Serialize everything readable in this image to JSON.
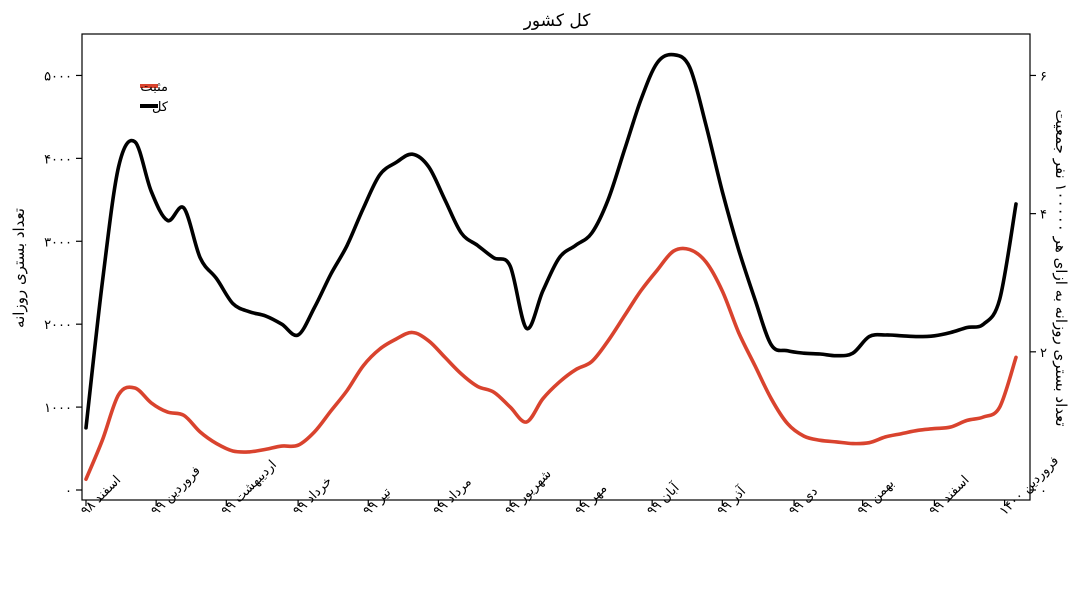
{
  "chart_data": {
    "type": "line",
    "title": "کل کشور",
    "ylabel": "تعداد بستری روزانه",
    "ylabel_right": "تعداد بستری روزانه به ازای هر ۱۰۰۰۰۰ نفر جمعیت",
    "ylim": [
      0,
      5500
    ],
    "y_right_lim": [
      0,
      6.6
    ],
    "yticks": [
      0,
      1000,
      2000,
      3000,
      4000,
      5000
    ],
    "yticklabels": [
      "۰",
      "۱۰۰۰",
      "۲۰۰۰",
      "۳۰۰۰",
      "۴۰۰۰",
      "۵۰۰۰"
    ],
    "y_right_ticks": [
      0,
      2,
      4,
      6
    ],
    "y_right_ticklabels": [
      "۰",
      "۲",
      "۴",
      "۶"
    ],
    "x_unit": "week index from start",
    "xlim": [
      0,
      57
    ],
    "x_ticks": [
      0,
      4.3,
      8.6,
      13,
      17.3,
      21.6,
      26,
      30.3,
      34.7,
      39,
      43.4,
      47.6,
      52,
      56.3
    ],
    "x_ticklabels": [
      "اسفند ۹۸",
      "فروردین ۹۹",
      "اردیبهشت ۹۹",
      "خرداد ۹۹",
      "تیر ۹۹",
      "مرداد ۹۹",
      "شهریور ۹۹",
      "مهر ۹۹",
      "آبان ۹۹",
      "آذر ۹۹",
      "دی ۹۹",
      "بهمن ۹۹",
      "اسفند ۹۹",
      "فروردین ۱۴۰۰"
    ],
    "legend_position": "top-left",
    "grid": false,
    "series": [
      {
        "name": "مثبت",
        "color": "#d9432e",
        "x": [
          0,
          1,
          2,
          3,
          4,
          5,
          6,
          7,
          8,
          9,
          10,
          11,
          12,
          13,
          14,
          15,
          16,
          17,
          18,
          19,
          20,
          21,
          22,
          23,
          24,
          25,
          26,
          27,
          28,
          29,
          30,
          31,
          32,
          33,
          34,
          35,
          36,
          37,
          38,
          39,
          40,
          41,
          42,
          43,
          44,
          45,
          46,
          47,
          48,
          49,
          50,
          51,
          52,
          53,
          54,
          55,
          56,
          57
        ],
        "values": [
          130,
          600,
          1150,
          1230,
          1050,
          940,
          900,
          700,
          560,
          470,
          460,
          490,
          530,
          540,
          700,
          950,
          1200,
          1500,
          1700,
          1820,
          1900,
          1800,
          1600,
          1400,
          1250,
          1180,
          1000,
          820,
          1100,
          1300,
          1450,
          1550,
          1800,
          2100,
          2400,
          2650,
          2880,
          2900,
          2750,
          2400,
          1900,
          1500,
          1100,
          800,
          650,
          600,
          580,
          560,
          570,
          640,
          680,
          720,
          740,
          760,
          840,
          880,
          1000,
          1600
        ]
      },
      {
        "name": "کل",
        "color": "#000000",
        "x": [
          0,
          1,
          2,
          3,
          4,
          5,
          6,
          7,
          8,
          9,
          10,
          11,
          12,
          13,
          14,
          15,
          16,
          17,
          18,
          19,
          20,
          21,
          22,
          23,
          24,
          25,
          26,
          27,
          28,
          29,
          30,
          31,
          32,
          33,
          34,
          35,
          36,
          37,
          38,
          39,
          40,
          41,
          42,
          43,
          44,
          45,
          46,
          47,
          48,
          49,
          50,
          51,
          52,
          53,
          54,
          55,
          56,
          57
        ],
        "values": [
          750,
          2500,
          3900,
          4200,
          3600,
          3250,
          3400,
          2800,
          2550,
          2250,
          2150,
          2100,
          2000,
          1870,
          2200,
          2600,
          2950,
          3400,
          3800,
          3950,
          4050,
          3900,
          3500,
          3100,
          2950,
          2800,
          2700,
          1950,
          2400,
          2800,
          2950,
          3100,
          3500,
          4100,
          4700,
          5150,
          5250,
          5100,
          4400,
          3600,
          2900,
          2300,
          1750,
          1680,
          1650,
          1640,
          1620,
          1650,
          1850,
          1870,
          1860,
          1850,
          1860,
          1900,
          1960,
          2000,
          2300,
          3450
        ]
      }
    ]
  }
}
